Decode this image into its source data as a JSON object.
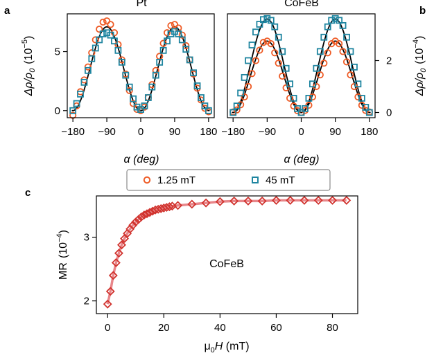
{
  "panel_labels": [
    "a",
    "b",
    "c"
  ],
  "colors": {
    "orange": "#ee5a24",
    "teal": "#1f85a0",
    "fit": "#000000",
    "red_marker": "#d1342f",
    "red_line": "#e8868a"
  },
  "legend": {
    "orange_label": "1.25 mT",
    "teal_label": "45 mT"
  },
  "chart_data": [
    {
      "id": "a",
      "type": "scatter",
      "title": "Pt",
      "xlabel": "α (deg)",
      "ylabel": "Δρ/ρ0 (10−5)",
      "ylabel_parts": {
        "main": "Δρ/ρ",
        "sub": "0",
        "unit_base": "10",
        "unit_exp": "−5"
      },
      "xlim": [
        -195,
        195
      ],
      "ylim": [
        -0.6,
        8.2
      ],
      "xticks": [
        -180,
        -90,
        0,
        90,
        180
      ],
      "xtick_labels": [
        "−180",
        "−90",
        "0",
        "90",
        "180"
      ],
      "yticks": [
        0,
        5
      ],
      "ytick_labels": [
        "0",
        "5"
      ],
      "grid": false,
      "series": [
        {
          "name": "1.25 mT",
          "marker": "circle",
          "color": "#ee5a24",
          "x": [
            -180,
            -170,
            -160,
            -150,
            -140,
            -130,
            -120,
            -110,
            -100,
            -90,
            -80,
            -70,
            -60,
            -50,
            -40,
            -30,
            -20,
            -10,
            0,
            10,
            20,
            30,
            40,
            50,
            60,
            70,
            80,
            90,
            100,
            110,
            120,
            130,
            140,
            150,
            160,
            170,
            180
          ],
          "y": [
            -0.4,
            0.4,
            1.6,
            2.6,
            3.7,
            4.9,
            6.0,
            6.9,
            7.5,
            7.6,
            7.3,
            6.6,
            5.6,
            4.3,
            3.1,
            1.7,
            0.6,
            0.1,
            0.0,
            0.3,
            1.1,
            2.2,
            3.4,
            4.6,
            5.7,
            6.6,
            7.2,
            7.3,
            7.0,
            6.4,
            5.5,
            4.3,
            3.1,
            1.9,
            0.9,
            0.2,
            -0.1
          ]
        },
        {
          "name": "45 mT",
          "marker": "square",
          "color": "#1f85a0",
          "x": [
            -180,
            -170,
            -160,
            -150,
            -140,
            -130,
            -120,
            -110,
            -100,
            -90,
            -80,
            -70,
            -60,
            -50,
            -40,
            -30,
            -20,
            -10,
            0,
            10,
            20,
            30,
            40,
            50,
            60,
            70,
            80,
            90,
            100,
            110,
            120,
            130,
            140,
            150,
            160,
            170,
            180
          ],
          "y": [
            0.0,
            0.6,
            1.4,
            2.4,
            3.4,
            4.4,
            5.3,
            6.0,
            6.5,
            6.6,
            6.4,
            5.9,
            5.1,
            4.1,
            3.0,
            2.0,
            1.0,
            0.3,
            0.1,
            0.4,
            1.1,
            2.0,
            3.0,
            4.1,
            5.1,
            5.9,
            6.5,
            6.7,
            6.5,
            6.0,
            5.2,
            4.3,
            3.2,
            2.1,
            1.1,
            0.4,
            0.0
          ]
        }
      ],
      "fit": {
        "amplitude": 7.1,
        "offset": 0.0
      }
    },
    {
      "id": "b",
      "type": "scatter",
      "title": "CoFeB",
      "xlabel": "α (deg)",
      "ylabel": "Δρ/ρ0 (10−4)",
      "ylabel_parts": {
        "main": "Δρ/ρ",
        "sub": "0",
        "unit_base": "10",
        "unit_exp": "−4"
      },
      "xlim": [
        -195,
        195
      ],
      "ylim": [
        -0.2,
        3.8
      ],
      "xticks": [
        -180,
        -90,
        0,
        90,
        180
      ],
      "xtick_labels": [
        "−180",
        "−90",
        "0",
        "90",
        "180"
      ],
      "yticks": [
        0,
        2
      ],
      "ytick_labels": [
        "0",
        "2"
      ],
      "grid": false,
      "series": [
        {
          "name": "1.25 mT",
          "marker": "circle",
          "color": "#ee5a24",
          "x": [
            -180,
            -170,
            -160,
            -150,
            -140,
            -130,
            -120,
            -110,
            -100,
            -90,
            -80,
            -70,
            -60,
            -50,
            -40,
            -30,
            -20,
            -10,
            0,
            10,
            20,
            30,
            40,
            50,
            60,
            70,
            80,
            90,
            100,
            110,
            120,
            130,
            140,
            150,
            160,
            170,
            180
          ],
          "y": [
            0.02,
            0.1,
            0.3,
            0.6,
            1.0,
            1.5,
            2.0,
            2.4,
            2.7,
            2.75,
            2.65,
            2.3,
            1.9,
            1.4,
            0.95,
            0.55,
            0.25,
            0.07,
            0.0,
            0.08,
            0.28,
            0.6,
            1.0,
            1.45,
            1.9,
            2.3,
            2.65,
            2.75,
            2.65,
            2.35,
            1.95,
            1.45,
            1.0,
            0.6,
            0.28,
            0.08,
            0.02
          ]
        },
        {
          "name": "45 mT",
          "marker": "square",
          "color": "#1f85a0",
          "x": [
            -180,
            -170,
            -160,
            -150,
            -140,
            -130,
            -120,
            -110,
            -100,
            -90,
            -80,
            -70,
            -60,
            -50,
            -40,
            -30,
            -20,
            -10,
            0,
            10,
            20,
            30,
            40,
            50,
            60,
            70,
            80,
            90,
            100,
            110,
            120,
            130,
            140,
            150,
            160,
            170,
            180
          ],
          "y": [
            0.0,
            0.25,
            0.75,
            1.35,
            2.0,
            2.6,
            3.1,
            3.4,
            3.58,
            3.62,
            3.55,
            3.3,
            2.9,
            2.35,
            1.7,
            1.1,
            0.55,
            0.15,
            0.0,
            0.15,
            0.55,
            1.1,
            1.7,
            2.35,
            2.9,
            3.3,
            3.55,
            3.62,
            3.55,
            3.35,
            2.9,
            2.35,
            1.75,
            1.1,
            0.55,
            0.2,
            0.0
          ]
        }
      ],
      "fits": [
        {
          "amplitude": 2.75,
          "offset": 0.0
        },
        {
          "amplitude": 3.6,
          "offset": 0.0
        }
      ]
    },
    {
      "id": "c",
      "type": "scatter",
      "title": "",
      "annotation": "CoFeB",
      "xlabel": "μ0H (mT)",
      "xlabel_parts": {
        "mu": "μ",
        "sub": "0",
        "var": "H",
        "unit": " (mT)"
      },
      "ylabel": "MR (10−4)",
      "ylabel_parts": {
        "main": "MR",
        "unit_base": "10",
        "unit_exp": "−4"
      },
      "xlim": [
        -4,
        89
      ],
      "ylim": [
        1.8,
        3.65
      ],
      "xticks": [
        0,
        20,
        40,
        60,
        80
      ],
      "xtick_labels": [
        "0",
        "20",
        "40",
        "60",
        "80"
      ],
      "yticks": [
        2,
        3
      ],
      "ytick_labels": [
        "2",
        "3"
      ],
      "grid": false,
      "series": [
        {
          "name": "MR",
          "marker": "diamond",
          "color": "#d1342f",
          "x": [
            0,
            1,
            2,
            3,
            4,
            5,
            6,
            7,
            8,
            9,
            10,
            11,
            12,
            13,
            14,
            15,
            16,
            17,
            18,
            19,
            20,
            21,
            22,
            23,
            25,
            30,
            35,
            40,
            45,
            50,
            55,
            60,
            65,
            70,
            75,
            80,
            85
          ],
          "y": [
            1.95,
            2.15,
            2.4,
            2.6,
            2.75,
            2.88,
            2.98,
            3.06,
            3.13,
            3.19,
            3.24,
            3.28,
            3.32,
            3.35,
            3.37,
            3.39,
            3.41,
            3.43,
            3.44,
            3.45,
            3.46,
            3.47,
            3.48,
            3.49,
            3.5,
            3.52,
            3.54,
            3.56,
            3.57,
            3.57,
            3.57,
            3.58,
            3.58,
            3.58,
            3.58,
            3.58,
            3.58
          ]
        }
      ]
    }
  ]
}
